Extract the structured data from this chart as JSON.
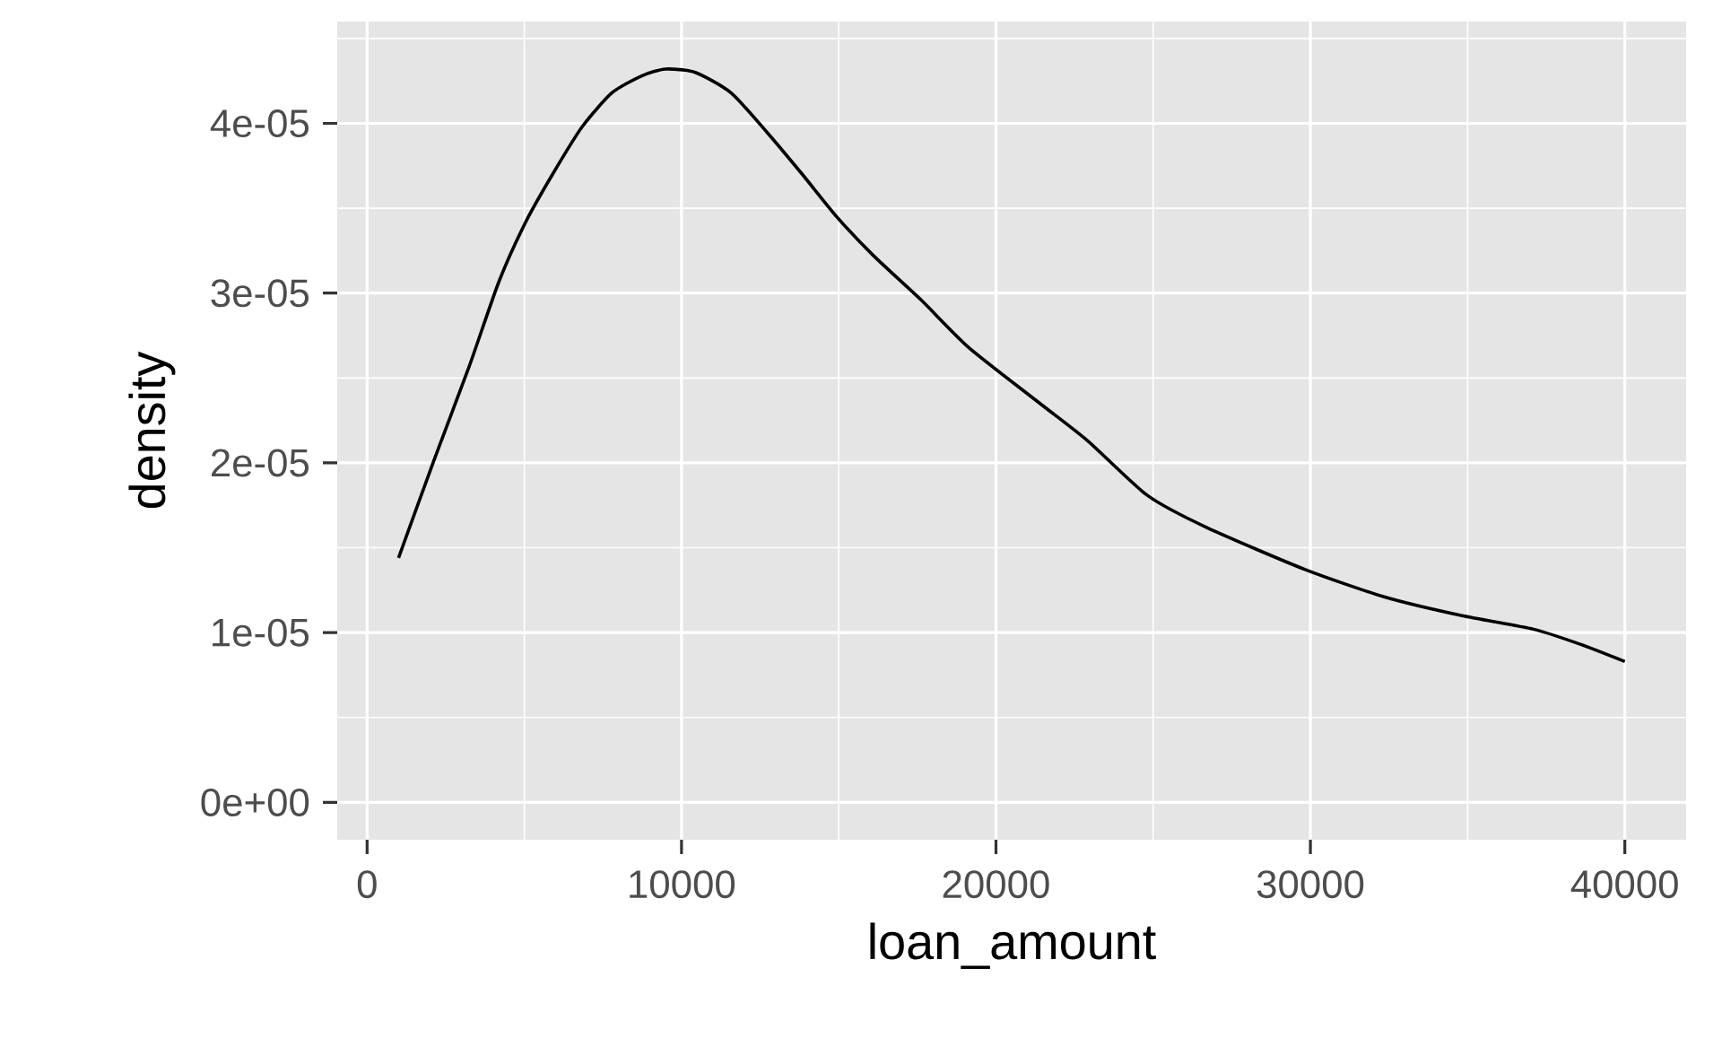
{
  "chart_data": {
    "type": "line",
    "xlabel": "loan_amount",
    "ylabel": "density",
    "x": [
      1000,
      2116,
      3250,
      4197,
      5048,
      5899,
      6840,
      7788,
      8735,
      9490,
      10437,
      11571,
      12706,
      13840,
      14935,
      16109,
      17618,
      19132,
      21400,
      22916,
      24804,
      26694,
      29853,
      32367,
      34827,
      37096,
      38605,
      40000
    ],
    "series": [
      {
        "color": "#000000",
        "values": [
          1.44e-05,
          2.01e-05,
          2.57e-05,
          3.07e-05,
          3.42e-05,
          3.7e-05,
          3.98e-05,
          4.18e-05,
          4.28e-05,
          4.32e-05,
          4.3e-05,
          4.18e-05,
          3.95e-05,
          3.7e-05,
          3.45e-05,
          3.22e-05,
          2.96e-05,
          2.68e-05,
          2.35e-05,
          2.13e-05,
          1.81e-05,
          1.62e-05,
          1.37e-05,
          1.21e-05,
          1.1e-05,
          1.02e-05,
          9.3e-06,
          8.3e-06
        ]
      }
    ],
    "xlim": [
      -950,
      41950
    ],
    "ylim": [
      -2.2e-06,
      4.6e-05
    ],
    "xticks": [
      0,
      10000,
      20000,
      30000,
      40000
    ],
    "yticks": [
      {
        "value": 0,
        "label": "0e+00"
      },
      {
        "value": 1e-05,
        "label": "1e-05"
      },
      {
        "value": 2e-05,
        "label": "2e-05"
      },
      {
        "value": 3e-05,
        "label": "3e-05"
      },
      {
        "value": 4e-05,
        "label": "4e-05"
      }
    ],
    "grid": true,
    "marker": "none",
    "line_style": "solid"
  }
}
